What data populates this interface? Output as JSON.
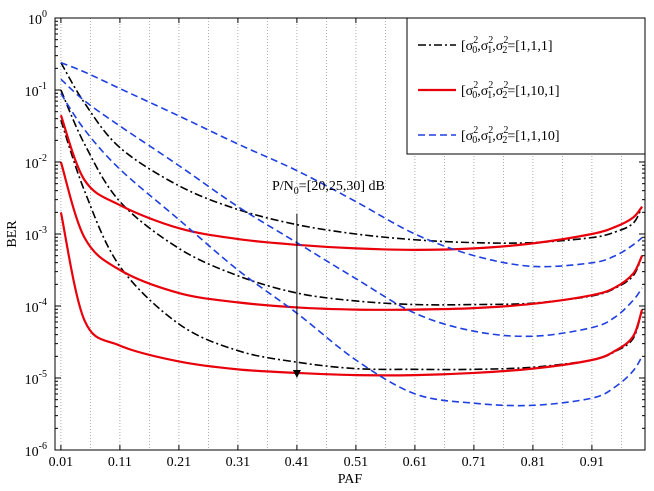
{
  "chart_data": {
    "type": "line",
    "title": "",
    "xlabel": "PAF",
    "ylabel": "BER",
    "xlim": [
      0.0,
      1.0
    ],
    "ylim_log10": [
      -6,
      0
    ],
    "yscale": "log",
    "x_tick_labels": [
      "0.01",
      "0.11",
      "0.21",
      "0.31",
      "0.41",
      "0.51",
      "0.61",
      "0.71",
      "0.81",
      "0.91"
    ],
    "x_tick_values": [
      0.01,
      0.11,
      0.21,
      0.31,
      0.41,
      0.51,
      0.61,
      0.71,
      0.81,
      0.91
    ],
    "y_tick_exponents": [
      "0",
      "-1",
      "-2",
      "-3",
      "-4",
      "-5",
      "-6"
    ],
    "y_tick_base": "10",
    "grid": "vertical dotted",
    "legend_position": "top-right",
    "annotation": {
      "text_main": "P/N",
      "text_sub": "0",
      "text_rest": "=[20,25,30] dB",
      "arrow_x": 0.41,
      "arrow_from_log10": -2.72,
      "arrow_to_log10": -5.0
    },
    "legend": [
      {
        "prefix": "[σ",
        "sub0": "0",
        "sub1": "1",
        "sub2": "2",
        "sup": "2",
        "value": "=[1,1,1]",
        "color": "#000000",
        "dash": "dashdot"
      },
      {
        "prefix": "[σ",
        "sub0": "0",
        "sub1": "1",
        "sub2": "2",
        "sup": "2",
        "value": "=[1,10,1]",
        "color": "#e8000b",
        "dash": "solid"
      },
      {
        "prefix": "[σ",
        "sub0": "0",
        "sub1": "1",
        "sub2": "2",
        "sup": "2",
        "value": "=[1,1,10]",
        "color": "#1f3fe0",
        "dash": "dashed"
      }
    ],
    "series": [
      {
        "name": "[1,1,1] P/N0=20dB",
        "group": 0,
        "x": [
          0.01,
          0.05,
          0.11,
          0.21,
          0.31,
          0.41,
          0.51,
          0.61,
          0.71,
          0.81,
          0.91,
          0.95,
          0.98,
          0.995
        ],
        "log10y": [
          -0.62,
          -1.18,
          -1.8,
          -2.33,
          -2.66,
          -2.87,
          -3.0,
          -3.08,
          -3.12,
          -3.12,
          -3.05,
          -2.97,
          -2.85,
          -2.62
        ]
      },
      {
        "name": "[1,1,1] P/N0=25dB",
        "group": 0,
        "x": [
          0.01,
          0.05,
          0.11,
          0.21,
          0.31,
          0.41,
          0.51,
          0.61,
          0.71,
          0.81,
          0.91,
          0.95,
          0.98,
          0.995
        ],
        "log10y": [
          -1.0,
          -1.75,
          -2.55,
          -3.2,
          -3.58,
          -3.82,
          -3.93,
          -3.98,
          -3.98,
          -3.96,
          -3.86,
          -3.75,
          -3.58,
          -3.3
        ]
      },
      {
        "name": "[1,1,1] P/N0=30dB",
        "group": 0,
        "x": [
          0.01,
          0.05,
          0.11,
          0.21,
          0.31,
          0.41,
          0.51,
          0.61,
          0.71,
          0.81,
          0.91,
          0.95,
          0.98,
          0.995
        ],
        "log10y": [
          -1.42,
          -2.4,
          -3.45,
          -4.25,
          -4.62,
          -4.78,
          -4.87,
          -4.88,
          -4.88,
          -4.85,
          -4.75,
          -4.63,
          -4.45,
          -4.05
        ]
      },
      {
        "name": "[1,10,1] P/N0=20dB",
        "group": 1,
        "x": [
          0.01,
          0.05,
          0.11,
          0.21,
          0.31,
          0.41,
          0.51,
          0.61,
          0.71,
          0.81,
          0.91,
          0.95,
          0.98,
          0.995
        ],
        "log10y": [
          -1.35,
          -2.25,
          -2.6,
          -2.92,
          -3.07,
          -3.15,
          -3.2,
          -3.22,
          -3.2,
          -3.13,
          -3.0,
          -2.9,
          -2.77,
          -2.62
        ]
      },
      {
        "name": "[1,10,1] P/N0=25dB",
        "group": 1,
        "x": [
          0.01,
          0.05,
          0.11,
          0.21,
          0.31,
          0.41,
          0.51,
          0.61,
          0.71,
          0.81,
          0.91,
          0.95,
          0.98,
          0.995
        ],
        "log10y": [
          -2.0,
          -3.05,
          -3.5,
          -3.82,
          -3.95,
          -4.02,
          -4.05,
          -4.05,
          -4.03,
          -3.97,
          -3.85,
          -3.74,
          -3.55,
          -3.3
        ]
      },
      {
        "name": "[1,10,1] P/N0=30dB",
        "group": 1,
        "x": [
          0.01,
          0.05,
          0.11,
          0.21,
          0.31,
          0.41,
          0.51,
          0.61,
          0.71,
          0.81,
          0.91,
          0.95,
          0.98,
          0.995
        ],
        "log10y": [
          -2.7,
          -4.2,
          -4.55,
          -4.77,
          -4.88,
          -4.93,
          -4.96,
          -4.96,
          -4.93,
          -4.87,
          -4.75,
          -4.62,
          -4.42,
          -4.05
        ]
      },
      {
        "name": "[1,1,10] P/N0=20dB",
        "group": 2,
        "x": [
          0.01,
          0.05,
          0.11,
          0.21,
          0.31,
          0.41,
          0.51,
          0.61,
          0.71,
          0.81,
          0.91,
          0.95,
          0.98,
          0.995
        ],
        "log10y": [
          -0.62,
          -0.75,
          -0.98,
          -1.36,
          -1.75,
          -2.12,
          -2.55,
          -3.0,
          -3.3,
          -3.45,
          -3.4,
          -3.3,
          -3.15,
          -3.05
        ]
      },
      {
        "name": "[1,1,10] P/N0=25dB",
        "group": 2,
        "x": [
          0.01,
          0.05,
          0.11,
          0.21,
          0.31,
          0.41,
          0.51,
          0.61,
          0.71,
          0.81,
          0.91,
          0.95,
          0.98,
          0.995
        ],
        "log10y": [
          -0.85,
          -1.15,
          -1.5,
          -2.05,
          -2.62,
          -3.12,
          -3.62,
          -4.1,
          -4.35,
          -4.42,
          -4.3,
          -4.15,
          -3.92,
          -3.75
        ]
      },
      {
        "name": "[1,1,10] P/N0=30dB",
        "group": 2,
        "x": [
          0.01,
          0.05,
          0.11,
          0.21,
          0.31,
          0.41,
          0.51,
          0.61,
          0.71,
          0.81,
          0.91,
          0.95,
          0.98,
          0.995
        ],
        "log10y": [
          -1.05,
          -1.55,
          -2.1,
          -2.8,
          -3.5,
          -4.1,
          -4.75,
          -5.22,
          -5.35,
          -5.38,
          -5.28,
          -5.12,
          -4.9,
          -4.7
        ]
      }
    ]
  }
}
